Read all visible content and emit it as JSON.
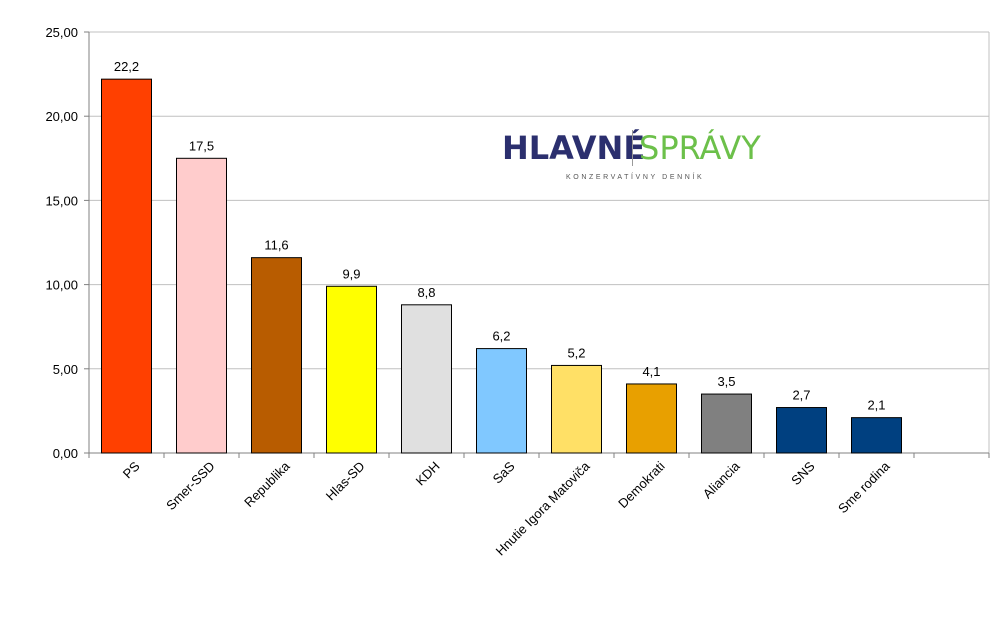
{
  "chart_data": {
    "type": "bar",
    "categories": [
      "PS",
      "Smer-SSD",
      "Republika",
      "Hlas-SD",
      "KDH",
      "SaS",
      "Hnutie Igora Matoviča",
      "Demokrati",
      "Aliancia",
      "SNS",
      "Sme rodina"
    ],
    "values": [
      22.2,
      17.5,
      11.6,
      9.9,
      8.8,
      6.2,
      5.2,
      4.1,
      3.5,
      2.7,
      2.1
    ],
    "value_labels": [
      "22,2",
      "17,5",
      "11,6",
      "9,9",
      "8,8",
      "6,2",
      "5,2",
      "4,1",
      "3,5",
      "2,7",
      "2,1"
    ],
    "colors": [
      "#ff4000",
      "#ffcccc",
      "#b85c00",
      "#ffff00",
      "#e0e0e0",
      "#80c8ff",
      "#ffe066",
      "#e8a000",
      "#808080",
      "#004080",
      "#004080"
    ],
    "yticks": [
      "0,00",
      "5,00",
      "10,00",
      "15,00",
      "20,00",
      "25,00"
    ],
    "ylim": [
      0,
      25
    ],
    "grid": true,
    "legend": "none"
  },
  "logo": {
    "left_text": "HLAVNÉ",
    "right_text": "SPRÁVY",
    "tagline": "KONZERVATÍVNY DENNÍK"
  }
}
